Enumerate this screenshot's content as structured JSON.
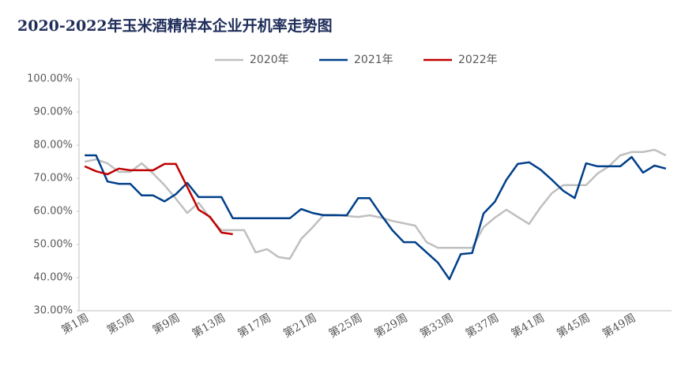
{
  "chart_data": {
    "type": "line",
    "title": "2020-2022年玉米酒精样本企业开机率走势图",
    "categories": [
      "第1周",
      null,
      null,
      null,
      "第5周",
      null,
      null,
      null,
      "第9周",
      null,
      null,
      null,
      "第13周",
      null,
      null,
      null,
      "第17周",
      null,
      null,
      null,
      "第21周",
      null,
      null,
      null,
      "第25周",
      null,
      null,
      null,
      "第29周",
      null,
      null,
      null,
      "第33周",
      null,
      null,
      null,
      "第37周",
      null,
      null,
      null,
      "第41周",
      null,
      null,
      null,
      "第45周",
      null,
      null,
      null,
      "第49周",
      null,
      null,
      null
    ],
    "series": [
      {
        "name": "2020年",
        "color": "#bfbfbf",
        "values": [
          75,
          75.7,
          74.5,
          71.9,
          71.9,
          74.5,
          71.4,
          67.9,
          63.8,
          59.5,
          62.6,
          57.9,
          54.3,
          54.3,
          54.3,
          47.6,
          48.6,
          46.2,
          45.7,
          51.7,
          55.2,
          59,
          59,
          58.6,
          58.3,
          58.8,
          58.1,
          57.1,
          56.4,
          55.7,
          50.7,
          49,
          49,
          49,
          49,
          55.2,
          58.1,
          60.5,
          58.3,
          56.2,
          61.2,
          65.5,
          67.9,
          67.9,
          67.9,
          71.4,
          73.6,
          76.9,
          77.9,
          77.9,
          78.6,
          76.9
        ]
      },
      {
        "name": "2021年",
        "color": "#003f8a",
        "values": [
          76.9,
          76.9,
          69,
          68.3,
          68.3,
          64.8,
          64.8,
          63,
          65.2,
          68.6,
          64.3,
          64.3,
          64.3,
          57.9,
          57.9,
          57.9,
          57.9,
          57.9,
          57.9,
          60.7,
          59.5,
          58.8,
          58.8,
          58.8,
          64,
          64,
          59,
          54.3,
          50.7,
          50.7,
          47.6,
          44.5,
          39.5,
          47.1,
          47.4,
          59.3,
          62.9,
          69.5,
          74.3,
          74.8,
          72.6,
          69.5,
          66.2,
          64,
          74.5,
          73.6,
          73.6,
          73.6,
          76.4,
          71.7,
          73.8,
          72.9
        ]
      },
      {
        "name": "2022年",
        "color": "#c00000",
        "values": [
          73.6,
          72.1,
          71.2,
          72.9,
          72.4,
          72.4,
          72.4,
          74.3,
          74.3,
          67.4,
          60.5,
          58.3,
          53.6,
          53.1,
          null,
          null,
          null,
          null,
          null,
          null,
          null,
          null,
          null,
          null,
          null,
          null,
          null,
          null,
          null,
          null,
          null,
          null,
          null,
          null,
          null,
          null,
          null,
          null,
          null,
          null,
          null,
          null,
          null,
          null,
          null,
          null,
          null,
          null,
          null,
          null,
          null,
          null
        ]
      }
    ],
    "ylim": [
      30,
      100
    ],
    "yticks": [
      {
        "value": 30,
        "label": "30.00%"
      },
      {
        "value": 40,
        "label": "40.00%"
      },
      {
        "value": 50,
        "label": "50.00%"
      },
      {
        "value": 60,
        "label": "60.00%"
      },
      {
        "value": 70,
        "label": "70.00%"
      },
      {
        "value": 80,
        "label": "80.00%"
      },
      {
        "value": 90,
        "label": "90.00%"
      },
      {
        "value": 100,
        "label": "100.00%"
      }
    ],
    "legend": "top"
  }
}
